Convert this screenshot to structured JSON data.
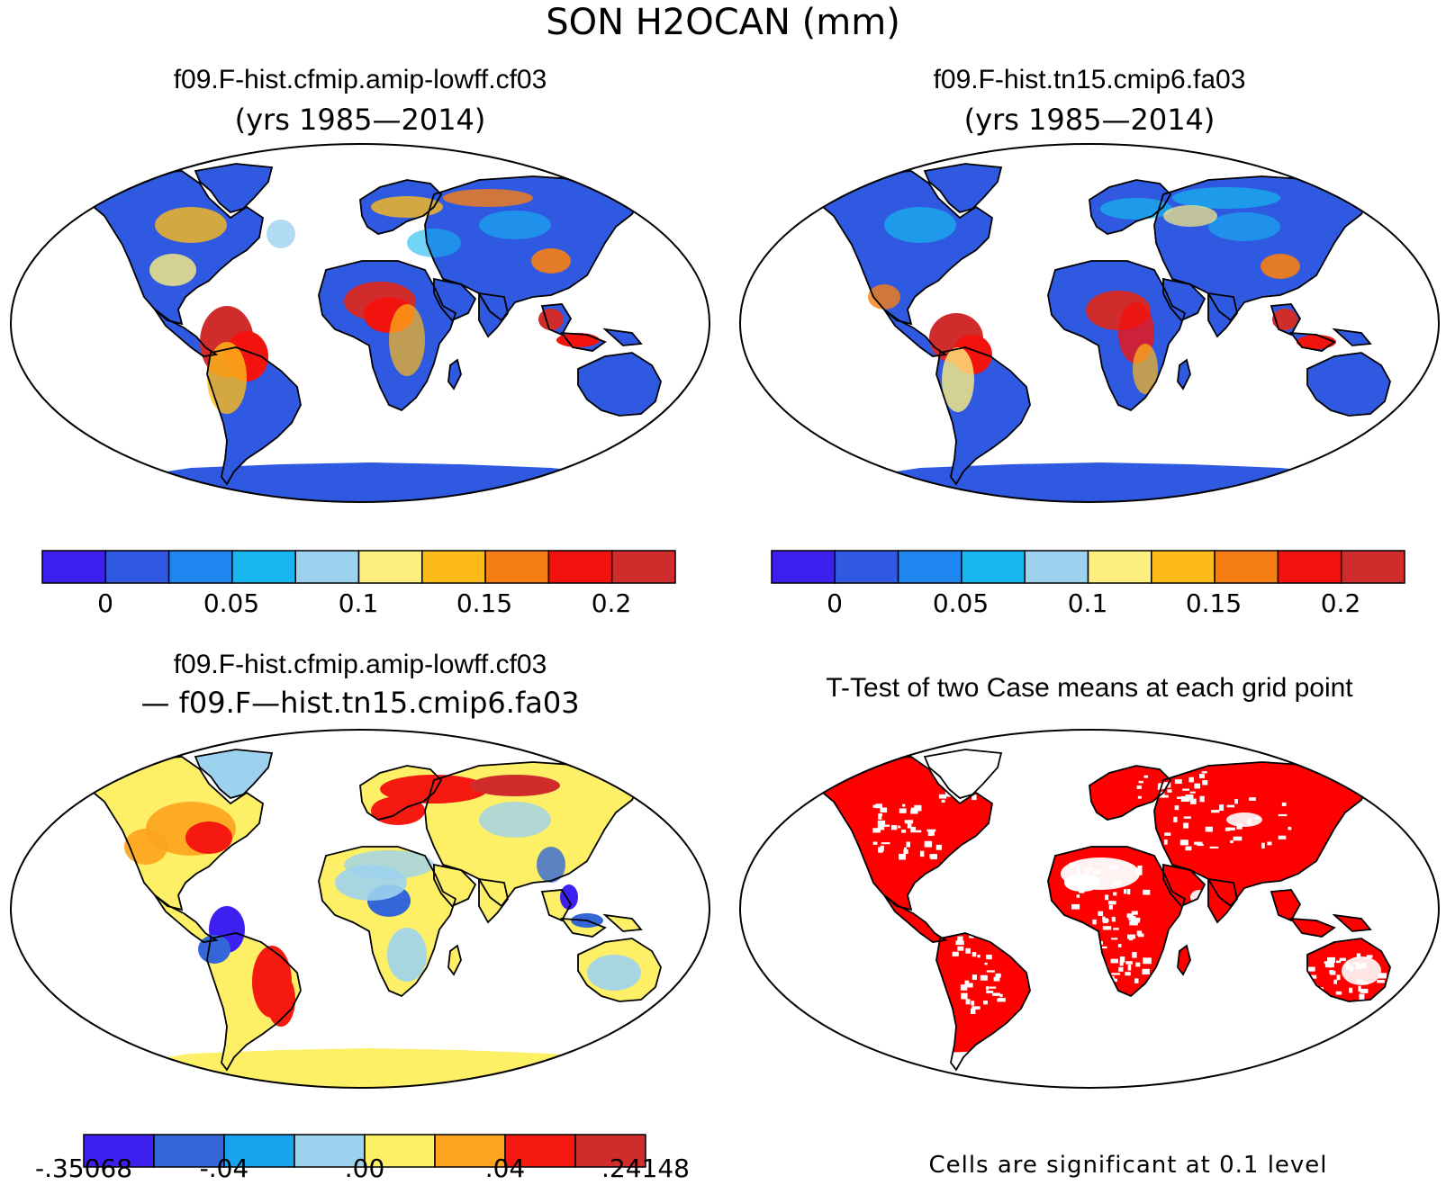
{
  "figure": {
    "title": "SON H2OCAN (mm)"
  },
  "panels": [
    {
      "id": "case1",
      "title": "f09.F-hist.cfmip.amip-lowff.cf03",
      "subtitle": "(yrs 1985—2014)"
    },
    {
      "id": "case2",
      "title": "f09.F-hist.tn15.cmip6.fa03",
      "subtitle": "(yrs 1985—2014)"
    },
    {
      "id": "difference",
      "title": "f09.F-hist.cfmip.amip-lowff.cf03",
      "subtitle": "— f09.F—hist.tn15.cmip6.fa03"
    },
    {
      "id": "ttest",
      "title": "T-Test of two Case means at each grid point",
      "note": "Cells are significant at 0.1 level"
    }
  ],
  "colorbars": {
    "case": {
      "colors": [
        "#3d1ff0",
        "#2e59e0",
        "#1f86ef",
        "#18b7f0",
        "#9dd2ef",
        "#fdf080",
        "#fdbb1a",
        "#f77e13",
        "#f2130f",
        "#d02c2c"
      ],
      "tick_labels": [
        "0",
        "0.05",
        "0.1",
        "0.15",
        "0.2"
      ]
    },
    "difference": {
      "colors": [
        "#3d1ff0",
        "#3566d8",
        "#19a3ee",
        "#9dd2ef",
        "#fdf066",
        "#fda31d",
        "#f5190f",
        "#d02c2c"
      ],
      "tick_labels": [
        "-.35068",
        "-.04",
        ".00",
        ".04",
        ".24148"
      ]
    }
  },
  "map_colors": {
    "ocean": "#ffffff",
    "coast": "#000000",
    "significant": "#ff0000"
  }
}
